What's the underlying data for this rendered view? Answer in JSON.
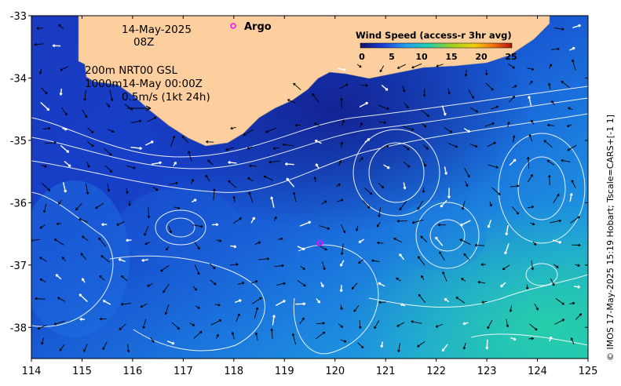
{
  "header": {
    "date": "14-May-2025",
    "hour": "08Z",
    "depth_line": "200m  NRT00 GSL",
    "depth_line2": "1000m14-May 00:00Z",
    "scale_label": "0.5m/s (1kt 24h)"
  },
  "argo": {
    "label": "Argo",
    "marker_color": "#ff00ff"
  },
  "legend": {
    "title": "Wind Speed (access-r 3hr avg)",
    "ticks": [
      "0",
      "5",
      "10",
      "15",
      "20",
      "25"
    ]
  },
  "credit": "© IMOS 17-May-2025 15:19 Hobart; Tscale=CARS+[-1 1]",
  "colors": {
    "land": "#fdcf9e",
    "ocean_deep": "#1a2fb0",
    "ocean_mid": "#1e73e0",
    "ocean_warm": "#20b8c0"
  },
  "chart_data": {
    "type": "map",
    "x_ticks": [
      "114",
      "115",
      "116",
      "117",
      "118",
      "119",
      "120",
      "121",
      "122",
      "123",
      "124",
      "125"
    ],
    "y_ticks": [
      "-33",
      "-34",
      "-35",
      "-36",
      "-37",
      "-38"
    ],
    "xlim": [
      114,
      125
    ],
    "ylim": [
      -38.5,
      -33
    ],
    "argo_points": [
      {
        "lon": 119.7,
        "lat": -36.65
      }
    ]
  }
}
